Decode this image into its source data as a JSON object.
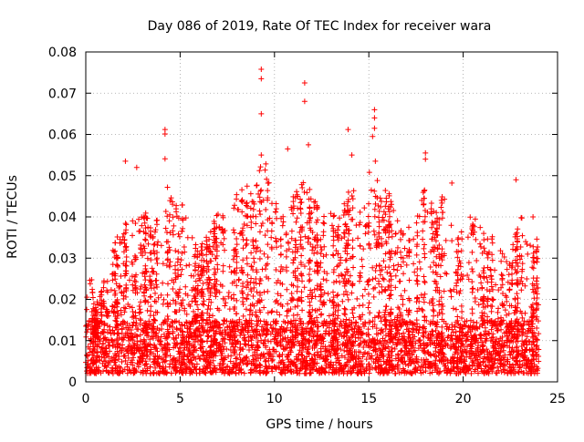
{
  "chart_data": {
    "type": "scatter",
    "title": "Day 086 of 2019, Rate Of TEC Index for receiver wara",
    "xlabel": "GPS time / hours",
    "ylabel": "ROTI / TECUs",
    "xlim": [
      0,
      25
    ],
    "ylim": [
      0,
      0.08
    ],
    "xticks": [
      0,
      5,
      10,
      15,
      20,
      25
    ],
    "xtick_labels": [
      "0",
      "5",
      "10",
      "15",
      "20",
      "25"
    ],
    "yticks": [
      0,
      0.01,
      0.02,
      0.03,
      0.04,
      0.05,
      0.06,
      0.07,
      0.08
    ],
    "ytick_labels": [
      "0",
      "0.01",
      "0.02",
      "0.03",
      "0.04",
      "0.05",
      "0.06",
      "0.07",
      "0.08"
    ],
    "grid": true,
    "marker": "+",
    "series_color": "#ff0000",
    "baseline_band": [
      0.002,
      0.015
    ],
    "envelope": {
      "hours": [
        0.0,
        0.2,
        0.5,
        1.0,
        1.5,
        2.0,
        2.3,
        2.7,
        3.0,
        3.5,
        4.0,
        4.3,
        4.7,
        5.0,
        5.5,
        6.0,
        6.5,
        7.0,
        7.5,
        8.0,
        8.5,
        9.0,
        9.4,
        10.0,
        10.5,
        11.0,
        11.5,
        12.0,
        12.5,
        13.0,
        13.5,
        14.0,
        14.5,
        15.0,
        15.3,
        15.7,
        16.0,
        16.5,
        17.0,
        17.5,
        18.0,
        18.5,
        19.0,
        19.5,
        20.0,
        20.5,
        21.0,
        21.5,
        22.0,
        22.5,
        23.0,
        23.5,
        24.0
      ],
      "max_roti": [
        0.022,
        0.029,
        0.018,
        0.026,
        0.034,
        0.038,
        0.044,
        0.04,
        0.045,
        0.036,
        0.043,
        0.05,
        0.042,
        0.046,
        0.036,
        0.033,
        0.036,
        0.041,
        0.04,
        0.046,
        0.048,
        0.05,
        0.055,
        0.046,
        0.04,
        0.047,
        0.05,
        0.046,
        0.04,
        0.042,
        0.04,
        0.048,
        0.044,
        0.052,
        0.055,
        0.046,
        0.047,
        0.04,
        0.038,
        0.04,
        0.048,
        0.042,
        0.046,
        0.04,
        0.036,
        0.042,
        0.038,
        0.036,
        0.033,
        0.03,
        0.042,
        0.033,
        0.036
      ]
    },
    "notable_points": [
      {
        "x": 4.2,
        "y": 0.0612
      },
      {
        "x": 4.2,
        "y": 0.0601
      },
      {
        "x": 4.2,
        "y": 0.0541
      },
      {
        "x": 9.3,
        "y": 0.0758
      },
      {
        "x": 9.3,
        "y": 0.0735
      },
      {
        "x": 9.3,
        "y": 0.065
      },
      {
        "x": 9.3,
        "y": 0.055
      },
      {
        "x": 10.7,
        "y": 0.0565
      },
      {
        "x": 11.6,
        "y": 0.0725
      },
      {
        "x": 11.6,
        "y": 0.068
      },
      {
        "x": 11.8,
        "y": 0.0575
      },
      {
        "x": 13.9,
        "y": 0.0612
      },
      {
        "x": 14.1,
        "y": 0.055
      },
      {
        "x": 15.3,
        "y": 0.066
      },
      {
        "x": 15.3,
        "y": 0.064
      },
      {
        "x": 15.3,
        "y": 0.0615
      },
      {
        "x": 15.2,
        "y": 0.0595
      },
      {
        "x": 18.0,
        "y": 0.0555
      },
      {
        "x": 18.0,
        "y": 0.054
      },
      {
        "x": 2.1,
        "y": 0.0535
      },
      {
        "x": 2.7,
        "y": 0.052
      },
      {
        "x": 19.4,
        "y": 0.0482
      },
      {
        "x": 22.8,
        "y": 0.049
      },
      {
        "x": 23.7,
        "y": 0.04
      }
    ]
  }
}
